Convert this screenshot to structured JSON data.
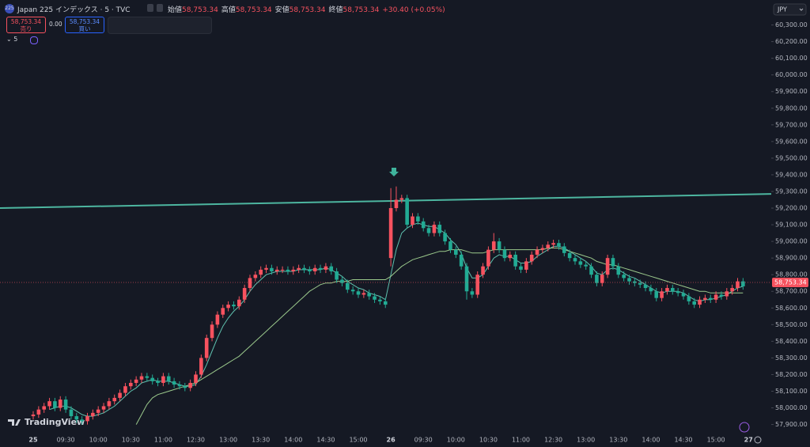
{
  "header": {
    "badge": "225",
    "symbol": "Japan 225 インデックス · 5 · TVC",
    "ohlc": [
      {
        "label": "始値",
        "value": "58,753.34"
      },
      {
        "label": "高値",
        "value": "58,753.34"
      },
      {
        "label": "安値",
        "value": "58,753.34"
      },
      {
        "label": "終値",
        "value": "58,753.34"
      }
    ],
    "change": "+30.40 (+0.05%)",
    "sell_price": "58,753.34",
    "sell_label": "売り",
    "spread": "0.00",
    "buy_price": "58,753.34",
    "buy_label": "買い",
    "interval": "5",
    "currency": "JPY",
    "brand": "TradingView"
  },
  "chart_data": {
    "type": "candlestick",
    "up_color": "#f7525f",
    "down_color": "#22ab94",
    "categories": [
      "25",
      null,
      null,
      null,
      null,
      null,
      "09:30",
      null,
      null,
      null,
      null,
      null,
      "10:00",
      null,
      null,
      null,
      null,
      null,
      "10:30",
      null,
      null,
      null,
      null,
      null,
      "11:00",
      null,
      null,
      null,
      null,
      null,
      "12:30",
      null,
      null,
      null,
      null,
      null,
      "13:00",
      null,
      null,
      null,
      null,
      null,
      "13:30",
      null,
      null,
      null,
      null,
      null,
      "14:00",
      null,
      null,
      null,
      null,
      null,
      "14:30",
      null,
      null,
      null,
      null,
      null,
      "15:00",
      null,
      null,
      null,
      null,
      null,
      "26",
      null,
      null,
      null,
      null,
      null,
      "09:30",
      null,
      null,
      null,
      null,
      null,
      "10:00",
      null,
      null,
      null,
      null,
      null,
      "10:30",
      null,
      null,
      null,
      null,
      null,
      "11:00",
      null,
      null,
      null,
      null,
      null,
      "12:30",
      null,
      null,
      null,
      null,
      null,
      "13:00",
      null,
      null,
      null,
      null,
      null,
      "13:30",
      null,
      null,
      null,
      null,
      null,
      "14:00",
      null,
      null,
      null,
      null,
      null,
      "14:30",
      null,
      null,
      null,
      null,
      null,
      "15:00",
      null,
      null,
      null,
      null,
      null,
      "27"
    ],
    "open": [
      57950,
      57960,
      57990,
      58010,
      58040,
      58000,
      58050,
      57990,
      57950,
      57930,
      57920,
      57950,
      57970,
      57990,
      58010,
      58040,
      58060,
      58090,
      58130,
      58150,
      58170,
      58190,
      58180,
      58160,
      58150,
      58190,
      58160,
      58140,
      58130,
      58120,
      58150,
      58200,
      58300,
      58420,
      58500,
      58560,
      58600,
      58620,
      58610,
      58650,
      58720,
      58780,
      58800,
      58830,
      58840,
      58820,
      58830,
      58830,
      58820,
      58830,
      58840,
      58830,
      58820,
      58840,
      58830,
      58850,
      58820,
      58770,
      58750,
      58710,
      58700,
      58680,
      58690,
      58670,
      58650,
      58640,
      58900,
      59200,
      59250,
      59260,
      59100,
      59150,
      59120,
      59080,
      59050,
      59100,
      59050,
      59000,
      58950,
      58920,
      58850,
      58700,
      58680,
      58800,
      58850,
      58950,
      59000,
      58950,
      58900,
      58920,
      58850,
      58830,
      58880,
      58920,
      58950,
      58960,
      58980,
      58990,
      58970,
      58930,
      58900,
      58880,
      58860,
      58850,
      58800,
      58750,
      58800,
      58900,
      58850,
      58800,
      58780,
      58760,
      58750,
      58740,
      58720,
      58700,
      58660,
      58700,
      58720,
      58700,
      58690,
      58670,
      58640,
      58620,
      58650,
      58660,
      58650,
      58680,
      58670,
      58700,
      58720,
      58760,
      null
    ],
    "high": [
      57980,
      58010,
      58030,
      58060,
      58060,
      58070,
      58070,
      58010,
      57970,
      57950,
      57970,
      57990,
      58010,
      58030,
      58060,
      58080,
      58110,
      58150,
      58170,
      58190,
      58210,
      58210,
      58200,
      58180,
      58210,
      58210,
      58180,
      58160,
      58150,
      58170,
      58220,
      58320,
      58440,
      58520,
      58580,
      58620,
      58640,
      58640,
      58670,
      58740,
      58800,
      58820,
      58850,
      58860,
      58860,
      58850,
      58850,
      58850,
      58850,
      58860,
      58860,
      58850,
      58860,
      58860,
      58870,
      58870,
      58840,
      58790,
      58770,
      58730,
      58720,
      58710,
      58710,
      58690,
      58670,
      58660,
      59320,
      59330,
      59280,
      59280,
      59170,
      59170,
      59140,
      59100,
      59120,
      59120,
      59070,
      59020,
      58970,
      58940,
      58870,
      58720,
      58820,
      58870,
      58970,
      59050,
      59020,
      58970,
      58940,
      58940,
      58870,
      58900,
      58940,
      58970,
      58980,
      59000,
      59010,
      59010,
      58990,
      58950,
      58920,
      58900,
      58880,
      58870,
      58820,
      58820,
      58920,
      58920,
      58870,
      58820,
      58800,
      58780,
      58770,
      58760,
      58740,
      58720,
      58720,
      58740,
      58740,
      58720,
      58710,
      58690,
      58660,
      58670,
      58680,
      58680,
      58700,
      58700,
      58720,
      58740,
      58780,
      58780,
      null
    ],
    "low": [
      57930,
      57940,
      57970,
      57990,
      57980,
      57980,
      57970,
      57930,
      57910,
      57900,
      57900,
      57930,
      57950,
      57970,
      57990,
      58020,
      58040,
      58070,
      58110,
      58130,
      58150,
      58160,
      58140,
      58130,
      58130,
      58140,
      58120,
      58110,
      58100,
      58100,
      58130,
      58180,
      58280,
      58400,
      58480,
      58540,
      58580,
      58590,
      58590,
      58630,
      58700,
      58760,
      58780,
      58810,
      58800,
      58800,
      58810,
      58800,
      58800,
      58810,
      58810,
      58800,
      58800,
      58810,
      58810,
      58800,
      58750,
      58730,
      58690,
      58680,
      58660,
      58660,
      58650,
      58630,
      58620,
      58600,
      58850,
      59180,
      59230,
      59080,
      59080,
      59100,
      59060,
      59030,
      59030,
      59030,
      58980,
      58930,
      58900,
      58830,
      58650,
      58660,
      58660,
      58780,
      58830,
      58930,
      58930,
      58880,
      58880,
      58830,
      58810,
      58810,
      58860,
      58900,
      58930,
      58940,
      58960,
      58950,
      58910,
      58880,
      58860,
      58840,
      58830,
      58780,
      58730,
      58730,
      58780,
      58830,
      58780,
      58760,
      58740,
      58730,
      58720,
      58700,
      58680,
      58640,
      58640,
      58680,
      58680,
      58670,
      58650,
      58620,
      58600,
      58600,
      58630,
      58630,
      58630,
      58650,
      58650,
      58680,
      58700,
      58710,
      null
    ],
    "close": [
      57960,
      57990,
      58010,
      58040,
      58000,
      58050,
      57990,
      57950,
      57930,
      57920,
      57950,
      57970,
      57990,
      58010,
      58040,
      58060,
      58090,
      58130,
      58150,
      58170,
      58190,
      58180,
      58160,
      58150,
      58190,
      58160,
      58140,
      58130,
      58120,
      58150,
      58200,
      58300,
      58420,
      58500,
      58560,
      58600,
      58620,
      58610,
      58650,
      58720,
      58780,
      58800,
      58830,
      58840,
      58820,
      58830,
      58830,
      58820,
      58830,
      58840,
      58830,
      58820,
      58840,
      58830,
      58850,
      58820,
      58770,
      58750,
      58710,
      58700,
      58680,
      58690,
      58670,
      58650,
      58640,
      58620,
      59200,
      59250,
      59260,
      59100,
      59150,
      59120,
      59080,
      59050,
      59100,
      59050,
      59000,
      58950,
      58920,
      58850,
      58700,
      58680,
      58800,
      58850,
      58950,
      59000,
      58950,
      58900,
      58920,
      58850,
      58830,
      58880,
      58920,
      58950,
      58960,
      58980,
      58990,
      58970,
      58930,
      58900,
      58880,
      58860,
      58850,
      58800,
      58750,
      58800,
      58900,
      58850,
      58800,
      58780,
      58760,
      58750,
      58740,
      58720,
      58700,
      58660,
      58700,
      58720,
      58700,
      58690,
      58670,
      58640,
      58620,
      58650,
      58660,
      58650,
      58680,
      58670,
      58700,
      58720,
      58760,
      58730,
      null
    ],
    "lines": [
      {
        "color": "#5fc0ae",
        "values": [
          null,
          null,
          null,
          57990,
          58000,
          58010,
          58010,
          58000,
          57980,
          57960,
          57950,
          57950,
          57960,
          57970,
          57990,
          58010,
          58040,
          58070,
          58100,
          58120,
          58150,
          58160,
          58170,
          58160,
          58160,
          58160,
          58150,
          58140,
          58130,
          58130,
          58140,
          58190,
          58260,
          58340,
          58420,
          58490,
          58540,
          58580,
          58610,
          58650,
          58700,
          58740,
          58770,
          58800,
          58810,
          58820,
          58820,
          58820,
          58820,
          58830,
          58830,
          58830,
          58830,
          58830,
          58840,
          58830,
          58810,
          58790,
          58760,
          58740,
          58720,
          58710,
          58690,
          58680,
          58670,
          58650,
          58800,
          58950,
          59050,
          59080,
          59100,
          59110,
          59100,
          59090,
          59090,
          59070,
          59050,
          59010,
          58980,
          58930,
          58840,
          58780,
          58780,
          58800,
          58850,
          58900,
          58920,
          58910,
          58910,
          58890,
          58870,
          58870,
          58880,
          58910,
          58930,
          58950,
          58970,
          58970,
          58960,
          58940,
          58920,
          58900,
          58880,
          58850,
          58810,
          58800,
          58830,
          58840,
          58830,
          58810,
          58790,
          58780,
          58760,
          58740,
          58720,
          58700,
          58690,
          58700,
          58700,
          58700,
          58690,
          58670,
          58650,
          58640,
          58650,
          58650,
          58660,
          58670,
          58680,
          58700,
          58720,
          58730,
          null
        ]
      },
      {
        "color": "#9bc98c",
        "values": [
          null,
          null,
          null,
          null,
          null,
          null,
          null,
          null,
          null,
          null,
          null,
          null,
          null,
          null,
          null,
          null,
          null,
          null,
          null,
          57900,
          57960,
          58020,
          58060,
          58080,
          58090,
          58100,
          58110,
          58120,
          58130,
          58140,
          58150,
          58170,
          58190,
          58210,
          58230,
          58250,
          58270,
          58290,
          58310,
          58340,
          58370,
          58400,
          58430,
          58460,
          58490,
          58520,
          58550,
          58580,
          58610,
          58640,
          58670,
          58700,
          58720,
          58740,
          58750,
          58750,
          58760,
          58760,
          58760,
          58770,
          58770,
          58770,
          58770,
          58770,
          58770,
          58770,
          58790,
          58820,
          58850,
          58870,
          58890,
          58900,
          58910,
          58920,
          58930,
          58940,
          58940,
          58950,
          58950,
          58950,
          58940,
          58930,
          58930,
          58930,
          58940,
          58950,
          58950,
          58950,
          58950,
          58950,
          58950,
          58950,
          58950,
          58950,
          58950,
          58960,
          58960,
          58960,
          58950,
          58940,
          58930,
          58920,
          58910,
          58900,
          58880,
          58870,
          58860,
          58860,
          58850,
          58840,
          58830,
          58820,
          58810,
          58800,
          58790,
          58780,
          58770,
          58760,
          58750,
          58740,
          58730,
          58720,
          58710,
          58700,
          58700,
          58690,
          58690,
          58690,
          58690,
          58690,
          58690,
          58690,
          null
        ]
      }
    ],
    "trend_line": {
      "start": 59200,
      "end": 59285,
      "color": "#4db6a0"
    },
    "last_price": 58753.34,
    "last_price_label": "58,753.34",
    "ylim": [
      57860,
      60450
    ],
    "yticks": [
      {
        "value": 57900,
        "label": "57,900.00"
      },
      {
        "value": 58000,
        "label": "58,000.00"
      },
      {
        "value": 58100,
        "label": "58,100.00"
      },
      {
        "value": 58200,
        "label": "58,200.00"
      },
      {
        "value": 58300,
        "label": "58,300.00"
      },
      {
        "value": 58400,
        "label": "58,400.00"
      },
      {
        "value": 58500,
        "label": "58,500.00"
      },
      {
        "value": 58600,
        "label": "58,600.00"
      },
      {
        "value": 58700,
        "label": "58,700.00"
      },
      {
        "value": 58800,
        "label": "58,800.00"
      },
      {
        "value": 58900,
        "label": "58,900.00"
      },
      {
        "value": 59000,
        "label": "59,000.00"
      },
      {
        "value": 59100,
        "label": "59,100.00"
      },
      {
        "value": 59200,
        "label": "59,200.00"
      },
      {
        "value": 59300,
        "label": "59,300.00"
      },
      {
        "value": 59400,
        "label": "59,400.00"
      },
      {
        "value": 59500,
        "label": "59,500.00"
      },
      {
        "value": 59600,
        "label": "59,600.00"
      },
      {
        "value": 59700,
        "label": "59,700.00"
      },
      {
        "value": 59800,
        "label": "59,800.00"
      },
      {
        "value": 59900,
        "label": "59,900.00"
      },
      {
        "value": 60000,
        "label": "60,000.00"
      },
      {
        "value": 60100,
        "label": "60,100.00"
      },
      {
        "value": 60200,
        "label": "60,200.00"
      },
      {
        "value": 60300,
        "label": "60,300.00"
      }
    ]
  }
}
